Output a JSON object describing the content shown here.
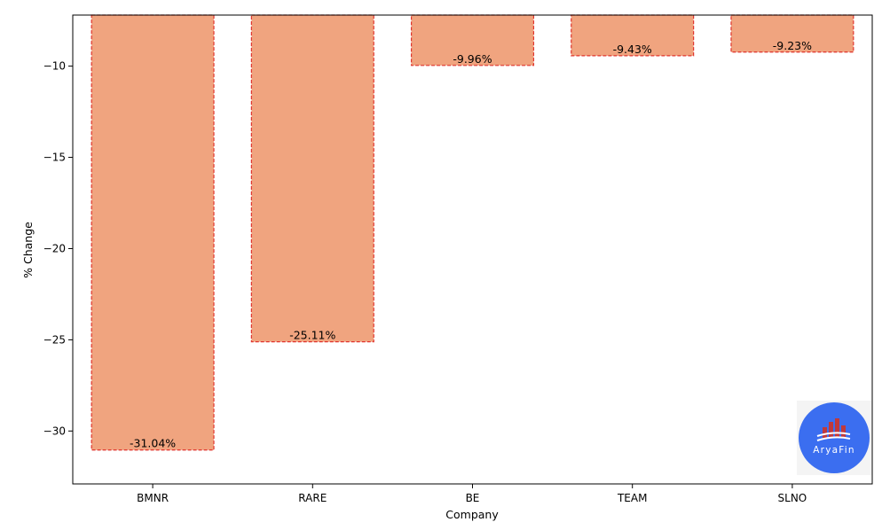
{
  "chart_data": {
    "type": "bar",
    "title": "",
    "xlabel": "Company",
    "ylabel": "% Change",
    "categories": [
      "BMNR",
      "RARE",
      "BE",
      "TEAM",
      "SLNO"
    ],
    "values": [
      -31.04,
      -25.11,
      -9.96,
      -9.43,
      -9.23
    ],
    "data_labels": [
      "-31.04%",
      "-25.11%",
      "-9.96%",
      "-9.43%",
      "-9.23%"
    ],
    "ylim": [
      -32.9,
      -7.2
    ],
    "yticks": [
      -30,
      -25,
      -20,
      -15,
      -10
    ],
    "ytick_labels": [
      "−30",
      "−25",
      "−20",
      "−15",
      "−10"
    ],
    "bar_fill": "#f0a47f",
    "bar_edge": "#e0342d",
    "grid": false,
    "legend": "none"
  },
  "logo": {
    "text": "AryaFin",
    "background": "#3b6ef0"
  }
}
